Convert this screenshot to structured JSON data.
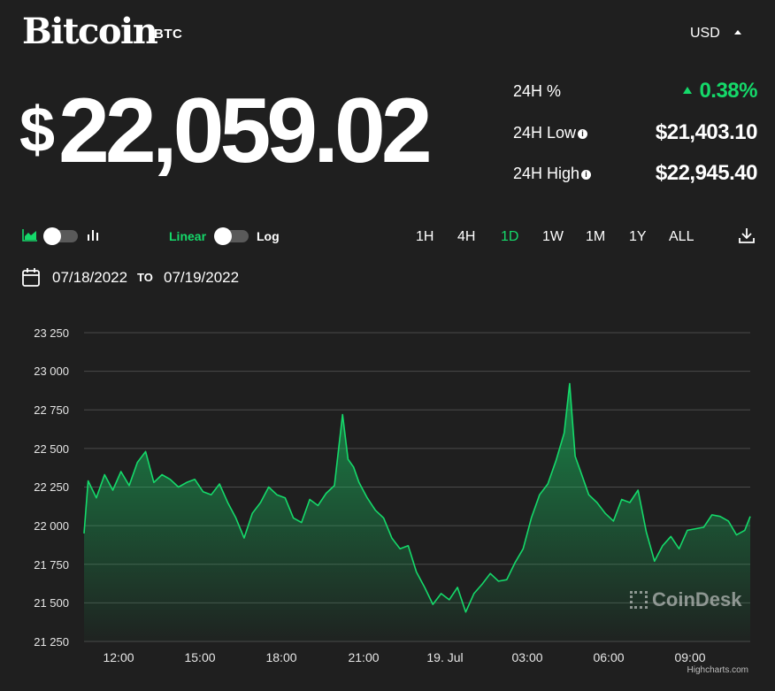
{
  "header": {
    "name": "Bitcoin",
    "symbol": "BTC",
    "currency": "USD"
  },
  "price": {
    "currency_symbol": "$",
    "value": "22,059.02"
  },
  "stats": [
    {
      "label": "24H %",
      "value": "0.38%",
      "info": false,
      "positive": true
    },
    {
      "label": "24H Low",
      "value": "$21,403.10",
      "info": true
    },
    {
      "label": "24H High",
      "value": "$22,945.40",
      "info": true
    }
  ],
  "controls": {
    "scale_linear": "Linear",
    "scale_log": "Log",
    "ranges": [
      "1H",
      "4H",
      "1D",
      "1W",
      "1M",
      "1Y",
      "ALL"
    ],
    "active_range": "1D"
  },
  "dates": {
    "from": "07/18/2022",
    "to_label": "TO",
    "to": "07/19/2022"
  },
  "colors": {
    "accent": "#15d96a",
    "background": "#1f1f1f",
    "grid": "#4a4a4a"
  },
  "watermark": "CoinDesk",
  "credit": "Highcharts.com",
  "chart_data": {
    "type": "area",
    "title": "",
    "xlabel": "",
    "ylabel": "",
    "ylim": [
      21250,
      23250
    ],
    "yticks": [
      21250,
      21500,
      21750,
      22000,
      22250,
      22500,
      22750,
      23000,
      23250
    ],
    "ytick_labels": [
      "21 250",
      "21 500",
      "21 750",
      "22 000",
      "22 250",
      "22 500",
      "22 750",
      "23 000",
      "23 250"
    ],
    "xlim": [
      10.95,
      35.3
    ],
    "xticks": [
      12,
      15,
      18,
      21,
      24,
      27,
      30,
      33
    ],
    "xtick_labels": [
      "12:00",
      "15:00",
      "18:00",
      "21:00",
      "19. Jul",
      "03:00",
      "06:00",
      "09:00"
    ],
    "x": [
      10.95,
      11.1,
      11.4,
      11.7,
      12.0,
      12.3,
      12.6,
      12.9,
      13.2,
      13.5,
      13.8,
      14.1,
      14.4,
      14.7,
      15.0,
      15.3,
      15.6,
      15.9,
      16.2,
      16.5,
      16.8,
      17.1,
      17.4,
      17.7,
      18.0,
      18.3,
      18.6,
      18.9,
      19.2,
      19.5,
      19.8,
      20.1,
      20.4,
      20.6,
      20.8,
      21.0,
      21.3,
      21.6,
      21.9,
      22.2,
      22.5,
      22.8,
      23.1,
      23.4,
      23.7,
      24.0,
      24.3,
      24.6,
      24.9,
      25.2,
      25.5,
      25.8,
      26.1,
      26.4,
      26.7,
      27.0,
      27.3,
      27.6,
      27.9,
      28.2,
      28.5,
      28.7,
      28.9,
      29.1,
      29.4,
      29.7,
      30.0,
      30.3,
      30.6,
      30.9,
      31.2,
      31.5,
      31.8,
      32.1,
      32.4,
      32.7,
      33.0,
      33.3,
      33.6,
      33.9,
      34.2,
      34.5,
      34.8,
      35.1,
      35.3
    ],
    "values": [
      21950,
      22290,
      22180,
      22330,
      22230,
      22350,
      22260,
      22410,
      22480,
      22280,
      22330,
      22300,
      22250,
      22280,
      22300,
      22220,
      22200,
      22270,
      22150,
      22050,
      21920,
      22080,
      22150,
      22250,
      22200,
      22180,
      22050,
      22020,
      22170,
      22130,
      22210,
      22260,
      22720,
      22430,
      22380,
      22280,
      22180,
      22100,
      22050,
      21920,
      21850,
      21870,
      21700,
      21600,
      21490,
      21560,
      21520,
      21600,
      21440,
      21560,
      21620,
      21690,
      21640,
      21650,
      21760,
      21850,
      22050,
      22200,
      22270,
      22420,
      22600,
      22920,
      22450,
      22350,
      22200,
      22150,
      22080,
      22030,
      22170,
      22150,
      22230,
      21960,
      21770,
      21870,
      21930,
      21850,
      21970,
      21980,
      21990,
      22070,
      22060,
      22030,
      21940,
      21970,
      22060
    ]
  }
}
